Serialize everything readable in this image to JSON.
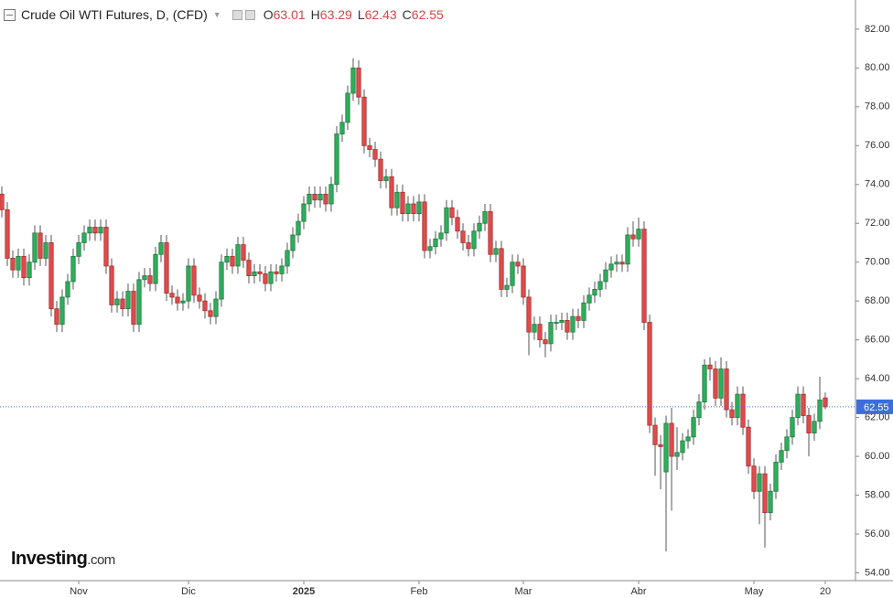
{
  "chart_data": {
    "type": "candlestick",
    "title": "Crude Oil WTI Futures, D, (CFD)",
    "ohlc_labels": {
      "open": "O",
      "high": "H",
      "low": "L",
      "close": "C"
    },
    "logo": {
      "name": "Investing",
      "suffix": ".com"
    },
    "categories": [
      null,
      null,
      null,
      null,
      null,
      null,
      null,
      null,
      null,
      null,
      null,
      null,
      null,
      null,
      "Nov",
      null,
      null,
      null,
      null,
      null,
      null,
      null,
      null,
      null,
      null,
      null,
      null,
      null,
      null,
      null,
      null,
      null,
      null,
      null,
      "Dic",
      null,
      null,
      null,
      null,
      null,
      null,
      null,
      null,
      null,
      null,
      null,
      null,
      null,
      null,
      null,
      null,
      null,
      null,
      null,
      null,
      "2025",
      null,
      null,
      null,
      null,
      null,
      null,
      null,
      null,
      null,
      null,
      null,
      null,
      null,
      null,
      null,
      null,
      null,
      null,
      null,
      null,
      "Feb",
      null,
      null,
      null,
      null,
      null,
      null,
      null,
      null,
      null,
      null,
      null,
      null,
      null,
      null,
      null,
      null,
      null,
      null,
      "Mar",
      null,
      null,
      null,
      null,
      null,
      null,
      null,
      null,
      null,
      null,
      null,
      null,
      null,
      null,
      null,
      null,
      null,
      null,
      null,
      null,
      "Abr",
      null,
      null,
      null,
      null,
      null,
      null,
      null,
      null,
      null,
      null,
      null,
      null,
      null,
      null,
      null,
      null,
      null,
      null,
      null,
      null,
      "May",
      null,
      null,
      null,
      null,
      null,
      null,
      null,
      null,
      null,
      null,
      null,
      null,
      "20"
    ],
    "open": [
      73.5,
      72.7,
      70.2,
      69.6,
      70.3,
      69.2,
      70.0,
      71.5,
      70.2,
      71.0,
      67.6,
      66.8,
      68.2,
      69.0,
      70.3,
      71.0,
      71.5,
      71.8,
      71.5,
      71.8,
      69.8,
      67.8,
      68.1,
      67.6,
      68.5,
      66.8,
      69.1,
      69.3,
      68.9,
      70.4,
      71.0,
      68.4,
      68.2,
      67.9,
      68.0,
      69.8,
      68.3,
      68.0,
      67.5,
      67.2,
      68.1,
      70.0,
      70.3,
      69.8,
      70.9,
      70.1,
      69.3,
      69.5,
      69.4,
      68.9,
      69.5,
      69.4,
      69.8,
      70.6,
      71.4,
      72.1,
      73.0,
      73.5,
      73.2,
      73.5,
      73.0,
      74.0,
      76.6,
      77.2,
      78.7,
      80.0,
      78.5,
      76.0,
      75.8,
      75.3,
      74.2,
      74.4,
      72.8,
      73.6,
      72.5,
      73.0,
      72.5,
      73.1,
      70.6,
      70.8,
      71.2,
      71.5,
      72.8,
      72.3,
      71.6,
      71.0,
      70.7,
      71.6,
      72.0,
      72.6,
      70.4,
      70.7,
      68.6,
      68.8,
      70.0,
      69.8,
      68.2,
      66.4,
      66.8,
      66.0,
      65.8,
      66.9,
      66.9,
      67.0,
      66.4,
      67.2,
      67.0,
      67.9,
      68.3,
      68.6,
      69.0,
      69.6,
      69.9,
      70.0,
      69.9,
      71.4,
      71.2,
      71.7,
      66.9,
      61.6,
      60.6,
      59.2,
      61.7,
      60.0,
      60.2,
      60.8,
      61.0,
      62.0,
      62.8,
      64.7,
      64.5,
      63.0,
      64.5,
      62.4,
      62.0,
      63.2,
      61.5,
      59.5,
      58.2,
      59.1,
      57.1,
      58.2,
      59.7,
      60.3,
      61.0,
      62.0,
      63.2,
      62.1,
      61.2,
      61.8,
      63.01
    ],
    "high": [
      73.9,
      73.1,
      70.6,
      70.7,
      70.7,
      70.4,
      71.9,
      71.9,
      71.4,
      71.4,
      68.0,
      68.6,
      69.4,
      70.7,
      71.4,
      71.9,
      72.2,
      72.2,
      72.2,
      72.2,
      70.2,
      68.5,
      68.5,
      68.9,
      68.9,
      69.5,
      69.7,
      69.7,
      70.8,
      71.4,
      71.4,
      68.8,
      68.6,
      68.4,
      70.2,
      70.2,
      68.7,
      68.4,
      67.9,
      68.5,
      70.4,
      70.7,
      70.7,
      71.3,
      71.3,
      70.5,
      69.9,
      69.9,
      69.8,
      69.9,
      69.9,
      70.2,
      71.0,
      71.8,
      72.5,
      73.4,
      73.9,
      73.9,
      73.9,
      73.9,
      74.4,
      77.0,
      77.6,
      79.1,
      80.5,
      80.4,
      78.9,
      76.4,
      76.2,
      75.7,
      74.8,
      74.8,
      74.0,
      74.0,
      73.4,
      73.4,
      73.5,
      73.5,
      71.2,
      71.6,
      71.9,
      73.2,
      73.2,
      72.7,
      72.0,
      71.4,
      72.0,
      72.4,
      73.0,
      73.0,
      71.1,
      71.1,
      69.2,
      70.4,
      70.4,
      70.2,
      68.6,
      67.2,
      67.2,
      66.4,
      67.3,
      67.3,
      67.4,
      67.4,
      67.6,
      67.6,
      68.3,
      68.7,
      69.0,
      69.4,
      70.0,
      70.3,
      70.4,
      70.4,
      71.8,
      72.1,
      72.3,
      72.1,
      67.3,
      62.0,
      61.1,
      62.1,
      62.5,
      61.5,
      61.2,
      61.4,
      62.4,
      63.2,
      65.0,
      65.1,
      64.9,
      65.1,
      64.9,
      62.8,
      63.6,
      63.6,
      61.9,
      59.9,
      59.5,
      59.5,
      58.6,
      60.1,
      60.7,
      61.4,
      62.4,
      63.6,
      63.6,
      62.5,
      62.2,
      64.1,
      63.29
    ],
    "low": [
      72.3,
      69.8,
      69.2,
      69.2,
      68.8,
      68.8,
      69.6,
      69.8,
      69.8,
      67.2,
      66.4,
      66.4,
      67.8,
      68.6,
      69.9,
      70.6,
      71.1,
      71.1,
      71.1,
      69.4,
      67.4,
      67.4,
      67.2,
      67.2,
      66.4,
      66.4,
      68.7,
      68.5,
      68.5,
      70.0,
      68.0,
      67.8,
      67.5,
      67.5,
      67.6,
      67.9,
      67.6,
      67.1,
      66.8,
      66.8,
      67.7,
      69.6,
      69.4,
      69.4,
      69.7,
      68.9,
      68.9,
      69.0,
      68.5,
      68.5,
      69.0,
      69.0,
      69.4,
      70.2,
      71.0,
      71.7,
      72.6,
      72.8,
      72.8,
      72.6,
      72.6,
      73.6,
      76.2,
      76.8,
      78.3,
      78.1,
      75.6,
      75.4,
      74.9,
      73.8,
      73.8,
      72.4,
      72.4,
      72.1,
      72.1,
      72.1,
      72.1,
      70.2,
      70.2,
      70.4,
      70.8,
      71.1,
      71.9,
      71.2,
      70.6,
      70.3,
      70.3,
      71.2,
      71.6,
      70.0,
      70.0,
      68.2,
      68.2,
      68.4,
      69.4,
      67.8,
      65.2,
      66.0,
      65.6,
      65.1,
      65.4,
      66.5,
      66.5,
      66.0,
      66.0,
      66.6,
      66.6,
      67.5,
      67.9,
      68.2,
      68.6,
      69.2,
      69.5,
      69.5,
      69.5,
      70.8,
      70.8,
      66.5,
      61.2,
      59.0,
      58.3,
      55.1,
      57.2,
      59.3,
      59.8,
      60.4,
      60.6,
      61.6,
      62.4,
      63.9,
      62.6,
      62.6,
      62.0,
      61.6,
      61.6,
      61.1,
      59.1,
      57.8,
      56.5,
      55.3,
      56.7,
      57.8,
      59.3,
      59.9,
      60.6,
      61.6,
      61.7,
      60.0,
      60.8,
      61.4,
      62.43
    ],
    "close": [
      72.7,
      70.2,
      69.6,
      70.3,
      69.2,
      70.0,
      71.5,
      70.2,
      71.0,
      67.6,
      66.8,
      68.2,
      69.0,
      70.3,
      71.0,
      71.5,
      71.8,
      71.5,
      71.8,
      69.8,
      67.8,
      68.1,
      67.6,
      68.5,
      66.8,
      69.1,
      69.3,
      68.9,
      70.4,
      71.0,
      68.4,
      68.2,
      67.9,
      68.0,
      69.8,
      68.3,
      68.0,
      67.5,
      67.2,
      68.1,
      70.0,
      70.3,
      69.8,
      70.9,
      70.1,
      69.3,
      69.5,
      69.4,
      68.9,
      69.5,
      69.4,
      69.8,
      70.6,
      71.4,
      72.1,
      73.0,
      73.5,
      73.2,
      73.5,
      73.0,
      74.0,
      76.6,
      77.2,
      78.7,
      80.0,
      78.5,
      76.0,
      75.8,
      75.3,
      74.2,
      74.4,
      72.8,
      73.6,
      72.5,
      73.0,
      72.5,
      73.1,
      70.6,
      70.8,
      71.2,
      71.5,
      72.8,
      72.3,
      71.6,
      71.0,
      70.7,
      71.6,
      72.0,
      72.6,
      70.4,
      70.7,
      68.6,
      68.8,
      70.0,
      69.8,
      68.2,
      66.4,
      66.8,
      66.0,
      65.8,
      66.9,
      66.9,
      67.0,
      66.4,
      67.2,
      67.0,
      67.9,
      68.3,
      68.6,
      69.0,
      69.6,
      69.9,
      70.0,
      69.9,
      71.4,
      71.2,
      71.7,
      66.9,
      61.6,
      60.6,
      60.5,
      61.7,
      60.0,
      60.2,
      60.8,
      61.0,
      62.0,
      62.8,
      64.7,
      64.5,
      63.0,
      64.5,
      62.4,
      62.0,
      63.2,
      61.5,
      59.5,
      58.2,
      59.1,
      57.1,
      58.2,
      59.7,
      60.3,
      61.0,
      62.0,
      63.2,
      62.1,
      61.2,
      61.8,
      62.9,
      62.55
    ],
    "up_color": "#2fae5c",
    "down_color": "#e04b4b",
    "last_price_color": "#3d6ed8",
    "ylim": [
      53.6,
      83.5
    ],
    "yticks": [
      {
        "value": 54,
        "label": "54.00"
      },
      {
        "value": 56,
        "label": "56.00"
      },
      {
        "value": 58,
        "label": "58.00"
      },
      {
        "value": 60,
        "label": "60.00"
      },
      {
        "value": 62,
        "label": "62.00"
      },
      {
        "value": 64,
        "label": "64.00"
      },
      {
        "value": 66,
        "label": "66.00"
      },
      {
        "value": 68,
        "label": "68.00"
      },
      {
        "value": 70,
        "label": "70.00"
      },
      {
        "value": 72,
        "label": "72.00"
      },
      {
        "value": 74,
        "label": "74.00"
      },
      {
        "value": 76,
        "label": "76.00"
      },
      {
        "value": 78,
        "label": "78.00"
      },
      {
        "value": 80,
        "label": "80.00"
      },
      {
        "value": 82,
        "label": "82.00"
      }
    ],
    "grid": false,
    "last_price_line": true
  }
}
